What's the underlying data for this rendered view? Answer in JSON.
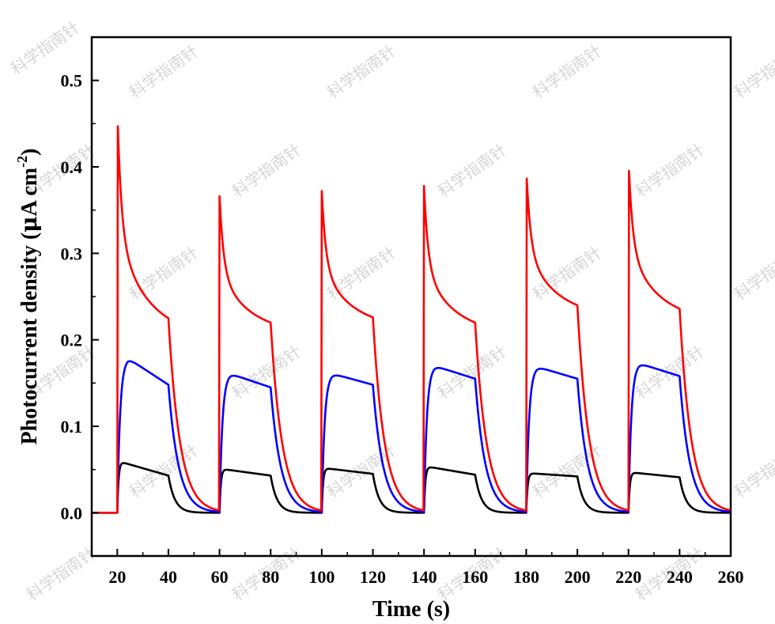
{
  "chart_data": {
    "type": "line",
    "xlabel": "Time (s)",
    "ylabel": "Photocurrent density (μA cm⁻²)",
    "ylabel_parts": {
      "main": "Photocurrent density (",
      "mu": "μ",
      "unit": "A cm",
      "sup": "-2",
      "close": ")"
    },
    "xlim": [
      10,
      260
    ],
    "ylim": [
      -0.05,
      0.55
    ],
    "xticks": [
      20,
      40,
      60,
      80,
      100,
      120,
      140,
      160,
      180,
      200,
      220,
      240,
      260
    ],
    "yticks": [
      0.0,
      0.1,
      0.2,
      0.3,
      0.4,
      0.5
    ],
    "ytick_labels": [
      "0.0",
      "0.1",
      "0.2",
      "0.3",
      "0.4",
      "0.5"
    ],
    "light_cycles": [
      [
        20,
        40
      ],
      [
        60,
        80
      ],
      [
        100,
        120
      ],
      [
        140,
        160
      ],
      [
        180,
        200
      ],
      [
        220,
        240
      ]
    ],
    "series": [
      {
        "color": "#000000",
        "on_start": [
          0.06,
          0.051,
          0.052,
          0.054,
          0.046,
          0.047
        ],
        "on_end": [
          0.043,
          0.043,
          0.045,
          0.044,
          0.042,
          0.041
        ],
        "decay_tau": 2.5,
        "shape": "flat"
      },
      {
        "color": "#0000ff",
        "on_peak": [
          0.179,
          0.161,
          0.161,
          0.17,
          0.169,
          0.173
        ],
        "on_end": [
          0.148,
          0.145,
          0.148,
          0.155,
          0.155,
          0.158
        ],
        "decay_tau": 4.0,
        "shape": "rise"
      },
      {
        "color": "#ff0000",
        "on_peak": [
          0.466,
          0.366,
          0.372,
          0.378,
          0.399,
          0.409
        ],
        "on_end": [
          0.225,
          0.22,
          0.226,
          0.22,
          0.24,
          0.236
        ],
        "decay_tau": 4.5,
        "shape": "spike"
      }
    ]
  },
  "watermark": "科学指南针"
}
